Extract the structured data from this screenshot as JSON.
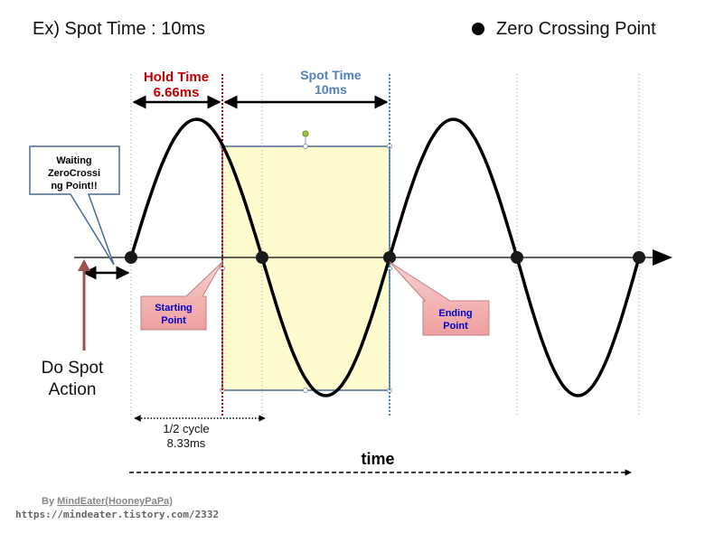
{
  "title": "Ex) Spot Time : 10ms",
  "legend": {
    "label": "Zero Crossing Point",
    "icon": "filled-circle"
  },
  "hold_time": {
    "label": "Hold Time",
    "value": "6.66ms"
  },
  "spot_time": {
    "label": "Spot Time",
    "value": "10ms"
  },
  "callout_waiting": {
    "lines": [
      "Waiting",
      "ZeroCrossi",
      "ng Point!!"
    ]
  },
  "starting_point": {
    "lines": [
      "Starting",
      "Point"
    ]
  },
  "ending_point": {
    "lines": [
      "Ending",
      "Point"
    ]
  },
  "do_spot_action": {
    "lines": [
      "Do Spot",
      "Action"
    ]
  },
  "half_cycle": {
    "lines": [
      "1/2 cycle",
      "8.33ms"
    ]
  },
  "axis_label": "time",
  "credit": {
    "by_prefix": "By ",
    "author": "MindEater(HooneyPaPa)",
    "url": "https://mindeater.tistory.com/2332"
  },
  "colors": {
    "hold_time": "#c00000",
    "spot_time": "#4f81bd",
    "spot_region_fill": "#fffdd0",
    "callout_fill": "#f2b9b9",
    "callout_text": "#0000cc",
    "arrow_brown": "#a05050"
  }
}
